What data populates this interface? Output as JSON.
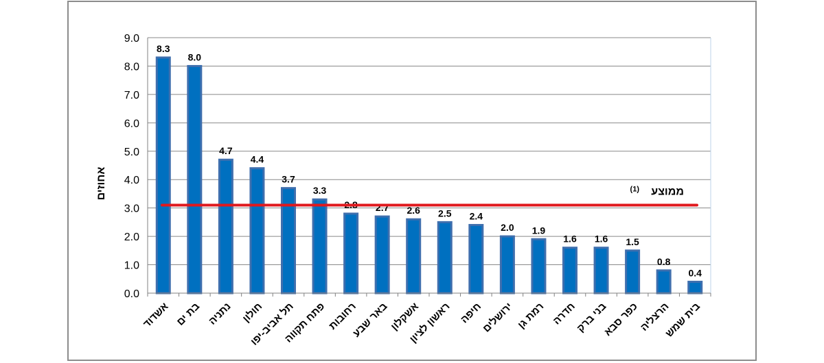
{
  "chart_data": {
    "type": "bar",
    "ylabel": "אחוזים",
    "ylim": [
      0,
      9
    ],
    "yticks": [
      "0.0",
      "1.0",
      "2.0",
      "3.0",
      "4.0",
      "5.0",
      "6.0",
      "7.0",
      "8.0",
      "9.0"
    ],
    "grid": true,
    "categories": [
      "אשדוד",
      "בת ים",
      "נתניה",
      "חולון",
      "תל אביב-יפו",
      "פתח תקווה",
      "רחובות",
      "באר שבע",
      "אשקלון",
      "ראשון לציון",
      "חיפה",
      "ירושלים",
      "רמת גן",
      "חדרה",
      "בני ברק",
      "כפר סבא",
      "הרצליה",
      "בית שמש"
    ],
    "values": [
      8.3,
      8.0,
      4.7,
      4.4,
      3.7,
      3.3,
      2.8,
      2.7,
      2.6,
      2.5,
      2.4,
      2.0,
      1.9,
      1.6,
      1.6,
      1.5,
      0.8,
      0.4
    ],
    "value_labels": [
      "8.3",
      "8.0",
      "4.7",
      "4.4",
      "3.7",
      "3.3",
      "2.8",
      "2.7",
      "2.6",
      "2.5",
      "2.4",
      "2.0",
      "1.9",
      "1.6",
      "1.6",
      "1.5",
      "0.8",
      "0.4"
    ],
    "average": {
      "label": "ממוצע",
      "note": "(1)",
      "value": 3.1
    },
    "colors": {
      "bar": "#0070c0",
      "bar_edge": "#3f6fae",
      "average_line": "#e0191e",
      "grid": "#888888"
    }
  }
}
